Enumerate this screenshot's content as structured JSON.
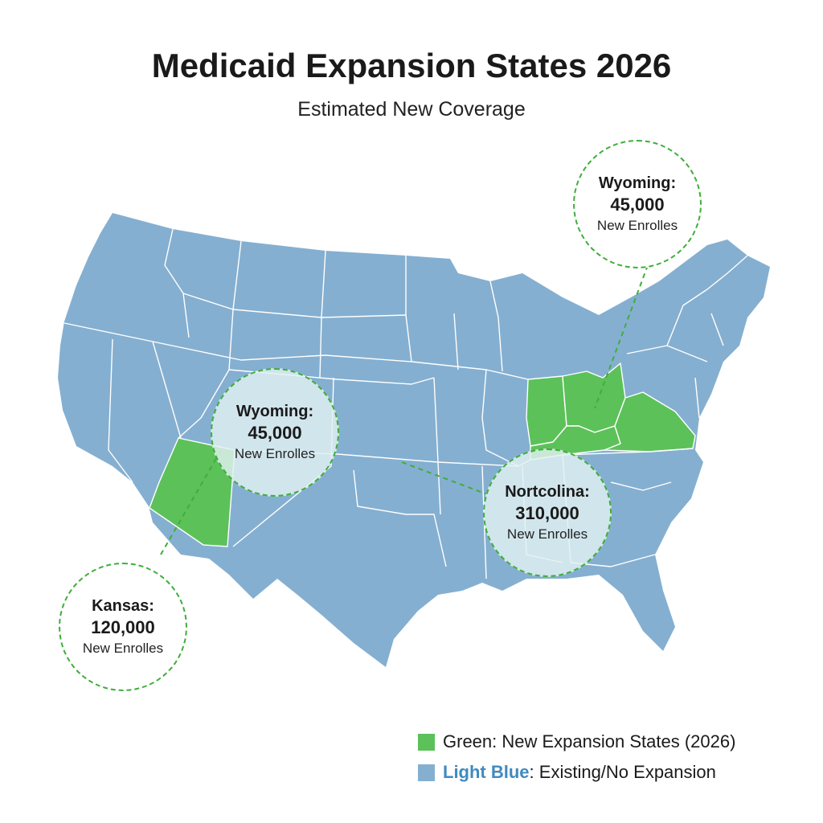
{
  "title": "Medicaid Expansion States 2026",
  "subtitle": "Estimated New Coverage",
  "colors": {
    "existing_fill": "#85afd0",
    "expansion_fill": "#5cc159",
    "callout_border": "#3fae3a",
    "border_lines": "#ffffff"
  },
  "expansion_states": [
    "Arizona",
    "Indiana",
    "Ohio",
    "Kentucky",
    "Virginia"
  ],
  "callouts": [
    {
      "name": "Wyoming:",
      "value": "45,000",
      "sub": "New Enrolles"
    },
    {
      "name": "Wyoming:",
      "value": "45,000",
      "sub": "New Enrolles"
    },
    {
      "name": "Nortcolina:",
      "value": "310,000",
      "sub": "New Enrolles"
    },
    {
      "name": "Kansas:",
      "value": "120,000",
      "sub": "New Enrolles"
    }
  ],
  "legend": [
    {
      "key": "Green",
      "desc": ": New Expansion States (2026)",
      "icon": "green-square"
    },
    {
      "key": "Light Blue",
      "desc": ": Existing/No Expansion",
      "icon": "blue-square"
    }
  ]
}
